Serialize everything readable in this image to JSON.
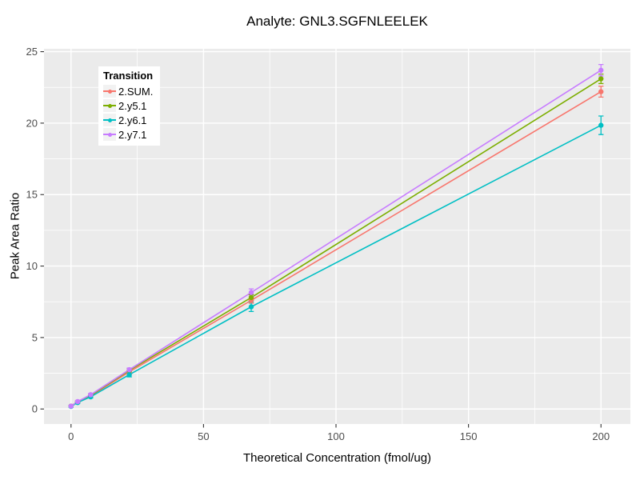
{
  "chart_data": {
    "type": "line",
    "title": "Analyte: GNL3.SGFNLEELEK",
    "xlabel": "Theoretical Concentration (fmol/ug)",
    "ylabel": "Peak Area Ratio",
    "legend_title": "Transition",
    "legend_position": "inside top-left",
    "grid": true,
    "panel_bg": "#EBEBEB",
    "grid_major_color": "#FFFFFF",
    "grid_minor_color": "#FFFFFF",
    "tick_color": "#333333",
    "tick_label_color": "#4D4D4D",
    "xlim": [
      -10.2,
      211.1
    ],
    "ylim": [
      -1.05,
      25.2
    ],
    "x_major_ticks": [
      0,
      50,
      100,
      150,
      200
    ],
    "x_minor_ticks": [
      25,
      75,
      125,
      175
    ],
    "y_major_ticks": [
      0,
      5,
      10,
      15,
      20,
      25
    ],
    "y_minor_ticks": [
      2.5,
      7.5,
      12.5,
      17.5,
      22.5
    ],
    "x": [
      0,
      2.5,
      7.4,
      22,
      68,
      200
    ],
    "series": [
      {
        "name": "2.SUM.",
        "color": "#F8766D",
        "values": [
          0.2,
          0.5,
          0.9,
          2.6,
          7.6,
          22.2
        ],
        "errors": [
          0.05,
          0.06,
          0.08,
          0.12,
          0.2,
          0.38
        ]
      },
      {
        "name": "2.y5.1",
        "color": "#7CAE00",
        "values": [
          0.2,
          0.5,
          0.95,
          2.7,
          7.8,
          23.1
        ],
        "errors": [
          0.05,
          0.06,
          0.08,
          0.12,
          0.2,
          0.33
        ]
      },
      {
        "name": "2.y6.1",
        "color": "#00BFC4",
        "values": [
          0.18,
          0.45,
          0.85,
          2.4,
          7.15,
          19.85
        ],
        "errors": [
          0.05,
          0.06,
          0.08,
          0.15,
          0.33,
          0.65
        ]
      },
      {
        "name": "2.y7.1",
        "color": "#C77CFF",
        "values": [
          0.2,
          0.52,
          1.0,
          2.75,
          8.15,
          23.7
        ],
        "errors": [
          0.05,
          0.06,
          0.08,
          0.12,
          0.25,
          0.4
        ]
      }
    ]
  }
}
